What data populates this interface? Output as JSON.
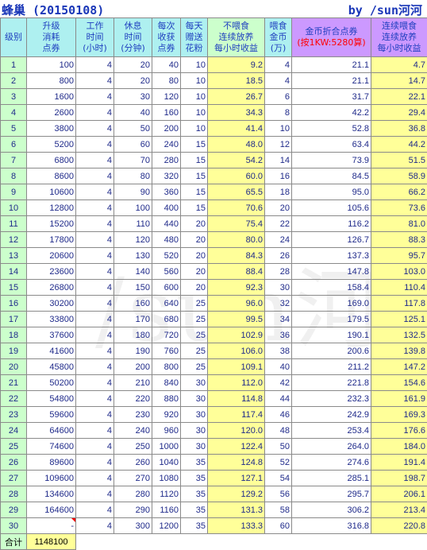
{
  "title": {
    "left": "蜂巢 (20150108)",
    "right": "by /sun河河"
  },
  "headers": {
    "level": "级别",
    "upgrade_cost": "升级\n消耗\n点券",
    "work_time": "工作\n时间\n(小时)",
    "rest_time": "休息\n时间\n(分钟)",
    "per_harvest": "每次\n收获\n点券",
    "daily_pollen": "每天\n赠送\n花粉",
    "no_feed_income": "不喂食\n连续放养\n每小时收益",
    "feed_gold": "喂食\n金币\n(万)",
    "gold_convert": "金币折合点券",
    "gold_convert_note": "(按1KW:5280算)",
    "feed_income": "连续喂食\n连续放养\n每小时收益"
  },
  "rows": [
    [
      "1",
      "100",
      "4",
      "20",
      "40",
      "10",
      "9.2",
      "4",
      "21.1",
      "4.7"
    ],
    [
      "2",
      "800",
      "4",
      "20",
      "80",
      "10",
      "18.5",
      "4",
      "21.1",
      "14.7"
    ],
    [
      "3",
      "1600",
      "4",
      "30",
      "120",
      "10",
      "26.7",
      "6",
      "31.7",
      "22.1"
    ],
    [
      "4",
      "2600",
      "4",
      "40",
      "160",
      "10",
      "34.3",
      "8",
      "42.2",
      "29.4"
    ],
    [
      "5",
      "3800",
      "4",
      "50",
      "200",
      "10",
      "41.4",
      "10",
      "52.8",
      "36.8"
    ],
    [
      "6",
      "5200",
      "4",
      "60",
      "240",
      "15",
      "48.0",
      "12",
      "63.4",
      "44.2"
    ],
    [
      "7",
      "6800",
      "4",
      "70",
      "280",
      "15",
      "54.2",
      "14",
      "73.9",
      "51.5"
    ],
    [
      "8",
      "8600",
      "4",
      "80",
      "320",
      "15",
      "60.0",
      "16",
      "84.5",
      "58.9"
    ],
    [
      "9",
      "10600",
      "4",
      "90",
      "360",
      "15",
      "65.5",
      "18",
      "95.0",
      "66.2"
    ],
    [
      "10",
      "12800",
      "4",
      "100",
      "400",
      "15",
      "70.6",
      "20",
      "105.6",
      "73.6"
    ],
    [
      "11",
      "15200",
      "4",
      "110",
      "440",
      "20",
      "75.4",
      "22",
      "116.2",
      "81.0"
    ],
    [
      "12",
      "17800",
      "4",
      "120",
      "480",
      "20",
      "80.0",
      "24",
      "126.7",
      "88.3"
    ],
    [
      "13",
      "20600",
      "4",
      "130",
      "520",
      "20",
      "84.3",
      "26",
      "137.3",
      "95.7"
    ],
    [
      "14",
      "23600",
      "4",
      "140",
      "560",
      "20",
      "88.4",
      "28",
      "147.8",
      "103.0"
    ],
    [
      "15",
      "26800",
      "4",
      "150",
      "600",
      "20",
      "92.3",
      "30",
      "158.4",
      "110.4"
    ],
    [
      "16",
      "30200",
      "4",
      "160",
      "640",
      "25",
      "96.0",
      "32",
      "169.0",
      "117.8"
    ],
    [
      "17",
      "33800",
      "4",
      "170",
      "680",
      "25",
      "99.5",
      "34",
      "179.5",
      "125.1"
    ],
    [
      "18",
      "37600",
      "4",
      "180",
      "720",
      "25",
      "102.9",
      "36",
      "190.1",
      "132.5"
    ],
    [
      "19",
      "41600",
      "4",
      "190",
      "760",
      "25",
      "106.0",
      "38",
      "200.6",
      "139.8"
    ],
    [
      "20",
      "45800",
      "4",
      "200",
      "800",
      "25",
      "109.1",
      "40",
      "211.2",
      "147.2"
    ],
    [
      "21",
      "50200",
      "4",
      "210",
      "840",
      "30",
      "112.0",
      "42",
      "221.8",
      "154.6"
    ],
    [
      "22",
      "54800",
      "4",
      "220",
      "880",
      "30",
      "114.8",
      "44",
      "232.3",
      "161.9"
    ],
    [
      "23",
      "59600",
      "4",
      "230",
      "920",
      "30",
      "117.4",
      "46",
      "242.9",
      "169.3"
    ],
    [
      "24",
      "64600",
      "4",
      "240",
      "960",
      "30",
      "120.0",
      "48",
      "253.4",
      "176.6"
    ],
    [
      "25",
      "74600",
      "4",
      "250",
      "1000",
      "30",
      "122.4",
      "50",
      "264.0",
      "184.0"
    ],
    [
      "26",
      "89600",
      "4",
      "260",
      "1040",
      "35",
      "124.8",
      "52",
      "274.6",
      "191.4"
    ],
    [
      "27",
      "109600",
      "4",
      "270",
      "1080",
      "35",
      "127.1",
      "54",
      "285.1",
      "198.7"
    ],
    [
      "28",
      "134600",
      "4",
      "280",
      "1120",
      "35",
      "129.2",
      "56",
      "295.7",
      "206.1"
    ],
    [
      "29",
      "164600",
      "4",
      "290",
      "1160",
      "35",
      "131.3",
      "58",
      "306.2",
      "213.4"
    ],
    [
      "30",
      "-",
      "4",
      "300",
      "1200",
      "35",
      "133.3",
      "60",
      "316.8",
      "220.8"
    ]
  ],
  "total": {
    "label": "合计",
    "value": "1148100"
  },
  "watermark": "/sun河",
  "colors": {
    "title": "#1a37b8",
    "header_cyan": "#aef0f0",
    "header_green": "#ccffcc",
    "header_lavender": "#cc99ff",
    "highlight_yellow": "#ffff99",
    "note_red": "#ff0000"
  }
}
